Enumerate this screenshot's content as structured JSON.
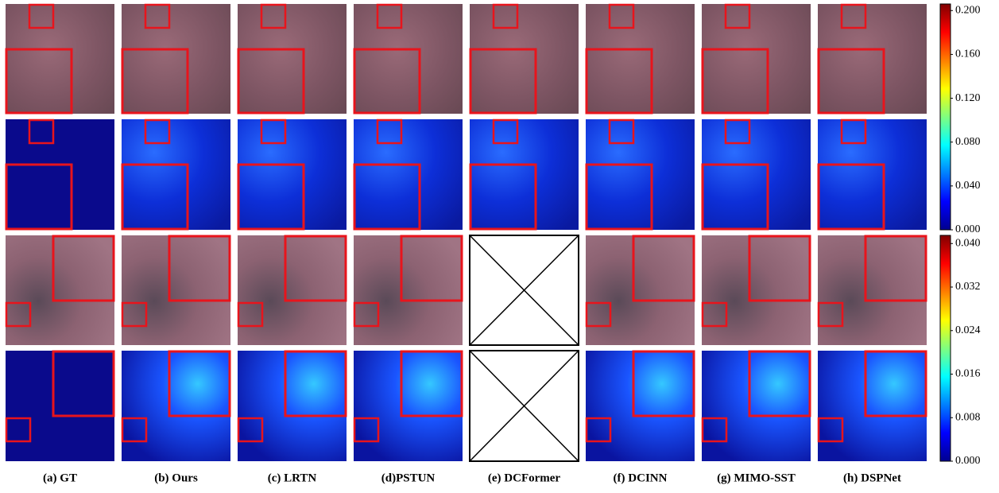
{
  "figure": {
    "columns": [
      "(a) GT",
      "(b) Ours",
      "(c) LRTN",
      "(d)PSTUN",
      "(e) DCFormer",
      "(f) DCINN",
      "(g) MIMO-SST",
      "(h) DSPNet"
    ],
    "colorbars": [
      {
        "lim": [
          0,
          0.206
        ],
        "ticks": [
          {
            "value": 0.2,
            "label": "0.200"
          },
          {
            "value": 0.16,
            "label": "0.160"
          },
          {
            "value": 0.12,
            "label": "0.120"
          },
          {
            "value": 0.08,
            "label": "0.080"
          },
          {
            "value": 0.04,
            "label": "0.040"
          },
          {
            "value": 0,
            "label": "0.000"
          }
        ]
      },
      {
        "lim": [
          0,
          0.0415
        ],
        "ticks": [
          {
            "value": 0.04,
            "label": "0.040"
          },
          {
            "value": 0.032,
            "label": "0.032"
          },
          {
            "value": 0.024,
            "label": "0.024"
          },
          {
            "value": 0.016,
            "label": "0.016"
          },
          {
            "value": 0.008,
            "label": "0.008"
          },
          {
            "value": 0,
            "label": "0.000"
          }
        ]
      }
    ]
  }
}
